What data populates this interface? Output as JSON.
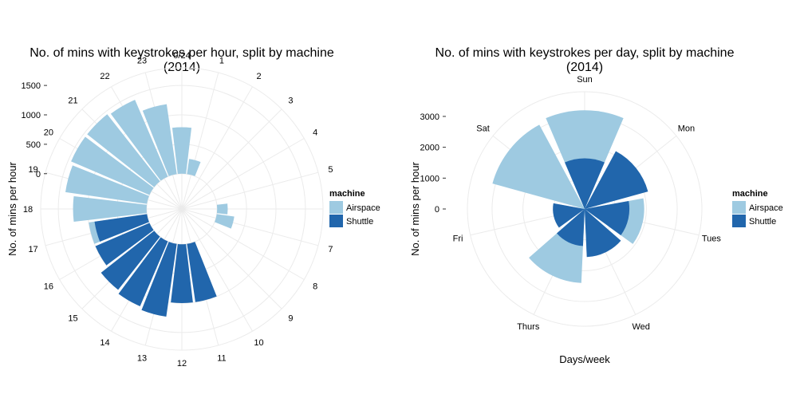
{
  "colors": {
    "Airspace": "#9ecae1",
    "Shuttle": "#2166ac",
    "grid": "#ebebeb"
  },
  "chart_data": [
    {
      "type": "bar",
      "coord": "polar",
      "title_line1": "No. of mins with keystrokes per hour, split by machine",
      "title_line2": "(2014)",
      "xlabel": "",
      "ylabel": "No. of mins per hour",
      "y_ticks": [
        "1500",
        "1000",
        "500",
        "0"
      ],
      "y_tick_values": [
        1500,
        1000,
        500,
        0
      ],
      "ylim": [
        -600,
        1800
      ],
      "categories": [
        "0/24",
        "1",
        "2",
        "3",
        "4",
        "5",
        "6",
        "7",
        "8",
        "9",
        "10",
        "11",
        "12",
        "13",
        "14",
        "15",
        "16",
        "17",
        "18",
        "19",
        "20",
        "21",
        "22",
        "23"
      ],
      "legend": {
        "title": "machine",
        "entries": [
          "Airspace",
          "Shuttle"
        ]
      },
      "series": [
        {
          "name": "Airspace",
          "values": [
            790,
            260,
            0,
            0,
            0,
            0,
            180,
            300,
            0,
            0,
            0,
            0,
            0,
            0,
            0,
            0,
            400,
            1000,
            1250,
            1400,
            1450,
            1450,
            1420,
            1200
          ]
        },
        {
          "name": "Shuttle",
          "values": [
            0,
            0,
            0,
            0,
            0,
            0,
            0,
            0,
            0,
            0,
            0,
            0,
            1000,
            1250,
            1200,
            1150,
            1000,
            900,
            0,
            0,
            0,
            0,
            0,
            0
          ]
        },
        {
          "name": "Shuttle",
          "values": [
            0,
            0,
            0,
            0,
            0,
            0,
            0,
            0,
            0,
            0,
            0,
            1000,
            0,
            0,
            0,
            0,
            0,
            0,
            0,
            0,
            0,
            0,
            0,
            0
          ]
        }
      ]
    },
    {
      "type": "bar",
      "coord": "polar",
      "title_line1": "No. of mins with keystrokes per day, split by machine",
      "title_line2": "(2014)",
      "xlabel": "Days/week",
      "ylabel": "No. of mins per hour",
      "y_ticks": [
        "3000",
        "2000",
        "1000",
        "0"
      ],
      "y_tick_values": [
        3000,
        2000,
        1000,
        0
      ],
      "ylim": [
        0,
        3800
      ],
      "categories": [
        "Sun",
        "Mon",
        "Tues",
        "Wed",
        "Thurs",
        "Fri",
        "Sat"
      ],
      "legend": {
        "title": "machine",
        "entries": [
          "Airspace",
          "Shuttle"
        ]
      },
      "series": [
        {
          "name": "Airspace",
          "values": [
            3200,
            1530,
            1930,
            1540,
            2400,
            1000,
            3100
          ]
        },
        {
          "name": "Shuttle",
          "values": [
            1640,
            2130,
            1450,
            1560,
            1200,
            1030,
            0
          ]
        }
      ]
    }
  ]
}
